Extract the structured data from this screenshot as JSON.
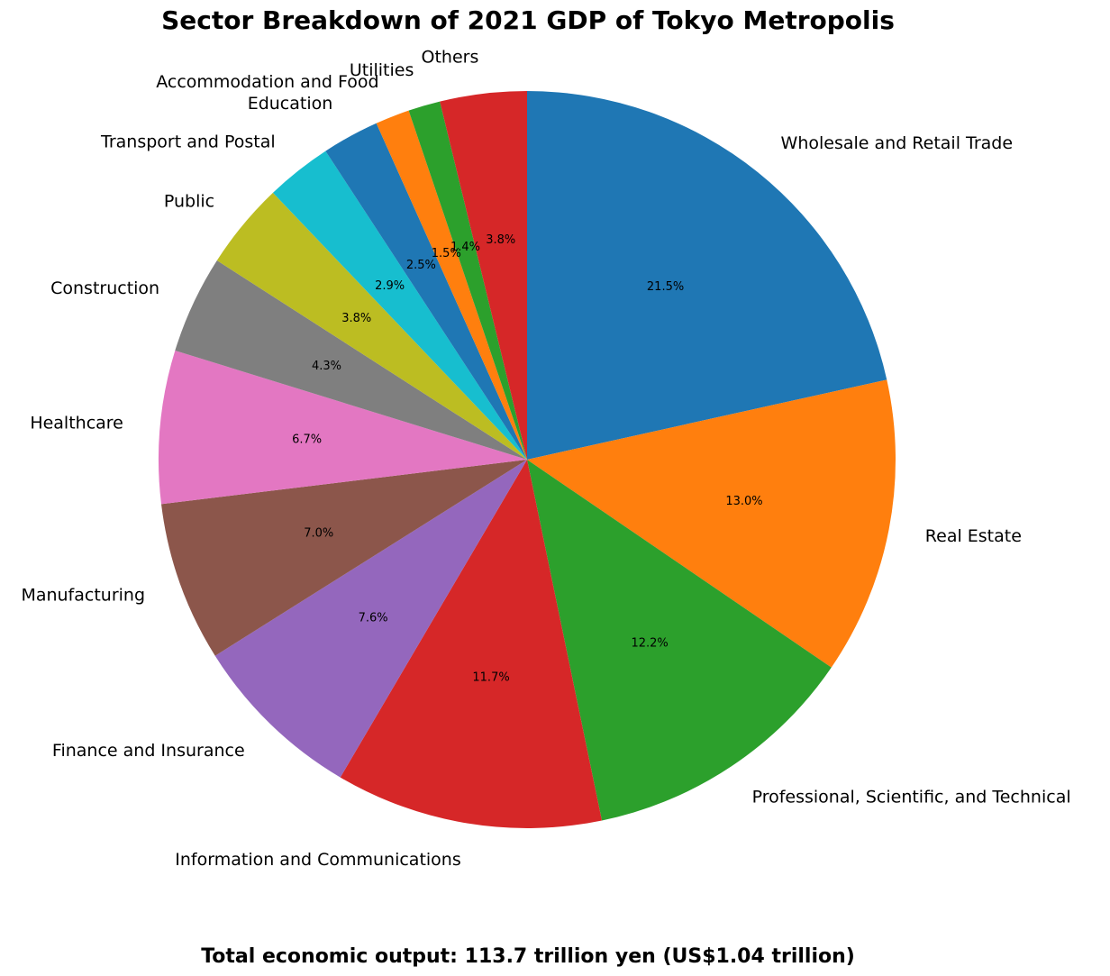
{
  "chart_data": {
    "type": "pie",
    "title": "Sector Breakdown of 2021 GDP of Tokyo Metropolis",
    "footer": "Total economic output: 113.7 trillion yen (US$1.04 trillion)",
    "start_angle_deg": 90,
    "direction": "clockwise",
    "slices": [
      {
        "label": "Wholesale and Retail Trade",
        "value": 21.5,
        "pct_label": "21.5%",
        "color": "#1f77b4"
      },
      {
        "label": "Real Estate",
        "value": 13.0,
        "pct_label": "13.0%",
        "color": "#ff7f0e"
      },
      {
        "label": "Professional, Scientific, and Technical",
        "value": 12.2,
        "pct_label": "12.2%",
        "color": "#2ca02c"
      },
      {
        "label": "Information and Communications",
        "value": 11.7,
        "pct_label": "11.7%",
        "color": "#d62728"
      },
      {
        "label": "Finance and Insurance",
        "value": 7.6,
        "pct_label": "7.6%",
        "color": "#9467bd"
      },
      {
        "label": "Manufacturing",
        "value": 7.0,
        "pct_label": "7.0%",
        "color": "#8c564b"
      },
      {
        "label": "Healthcare",
        "value": 6.7,
        "pct_label": "6.7%",
        "color": "#e377c2"
      },
      {
        "label": "Construction",
        "value": 4.3,
        "pct_label": "4.3%",
        "color": "#7f7f7f"
      },
      {
        "label": "Public",
        "value": 3.8,
        "pct_label": "3.8%",
        "color": "#bcbd22"
      },
      {
        "label": "Transport and Postal",
        "value": 2.9,
        "pct_label": "2.9%",
        "color": "#17becf"
      },
      {
        "label": "Education",
        "value": 2.5,
        "pct_label": "2.5%",
        "color": "#1f77b4"
      },
      {
        "label": "Accommodation and Food",
        "value": 1.5,
        "pct_label": "1.5%",
        "color": "#ff7f0e"
      },
      {
        "label": "Utilities",
        "value": 1.4,
        "pct_label": "1.4%",
        "color": "#2ca02c"
      },
      {
        "label": "Others",
        "value": 3.8,
        "pct_label": "3.8%",
        "color": "#d62728"
      }
    ]
  }
}
